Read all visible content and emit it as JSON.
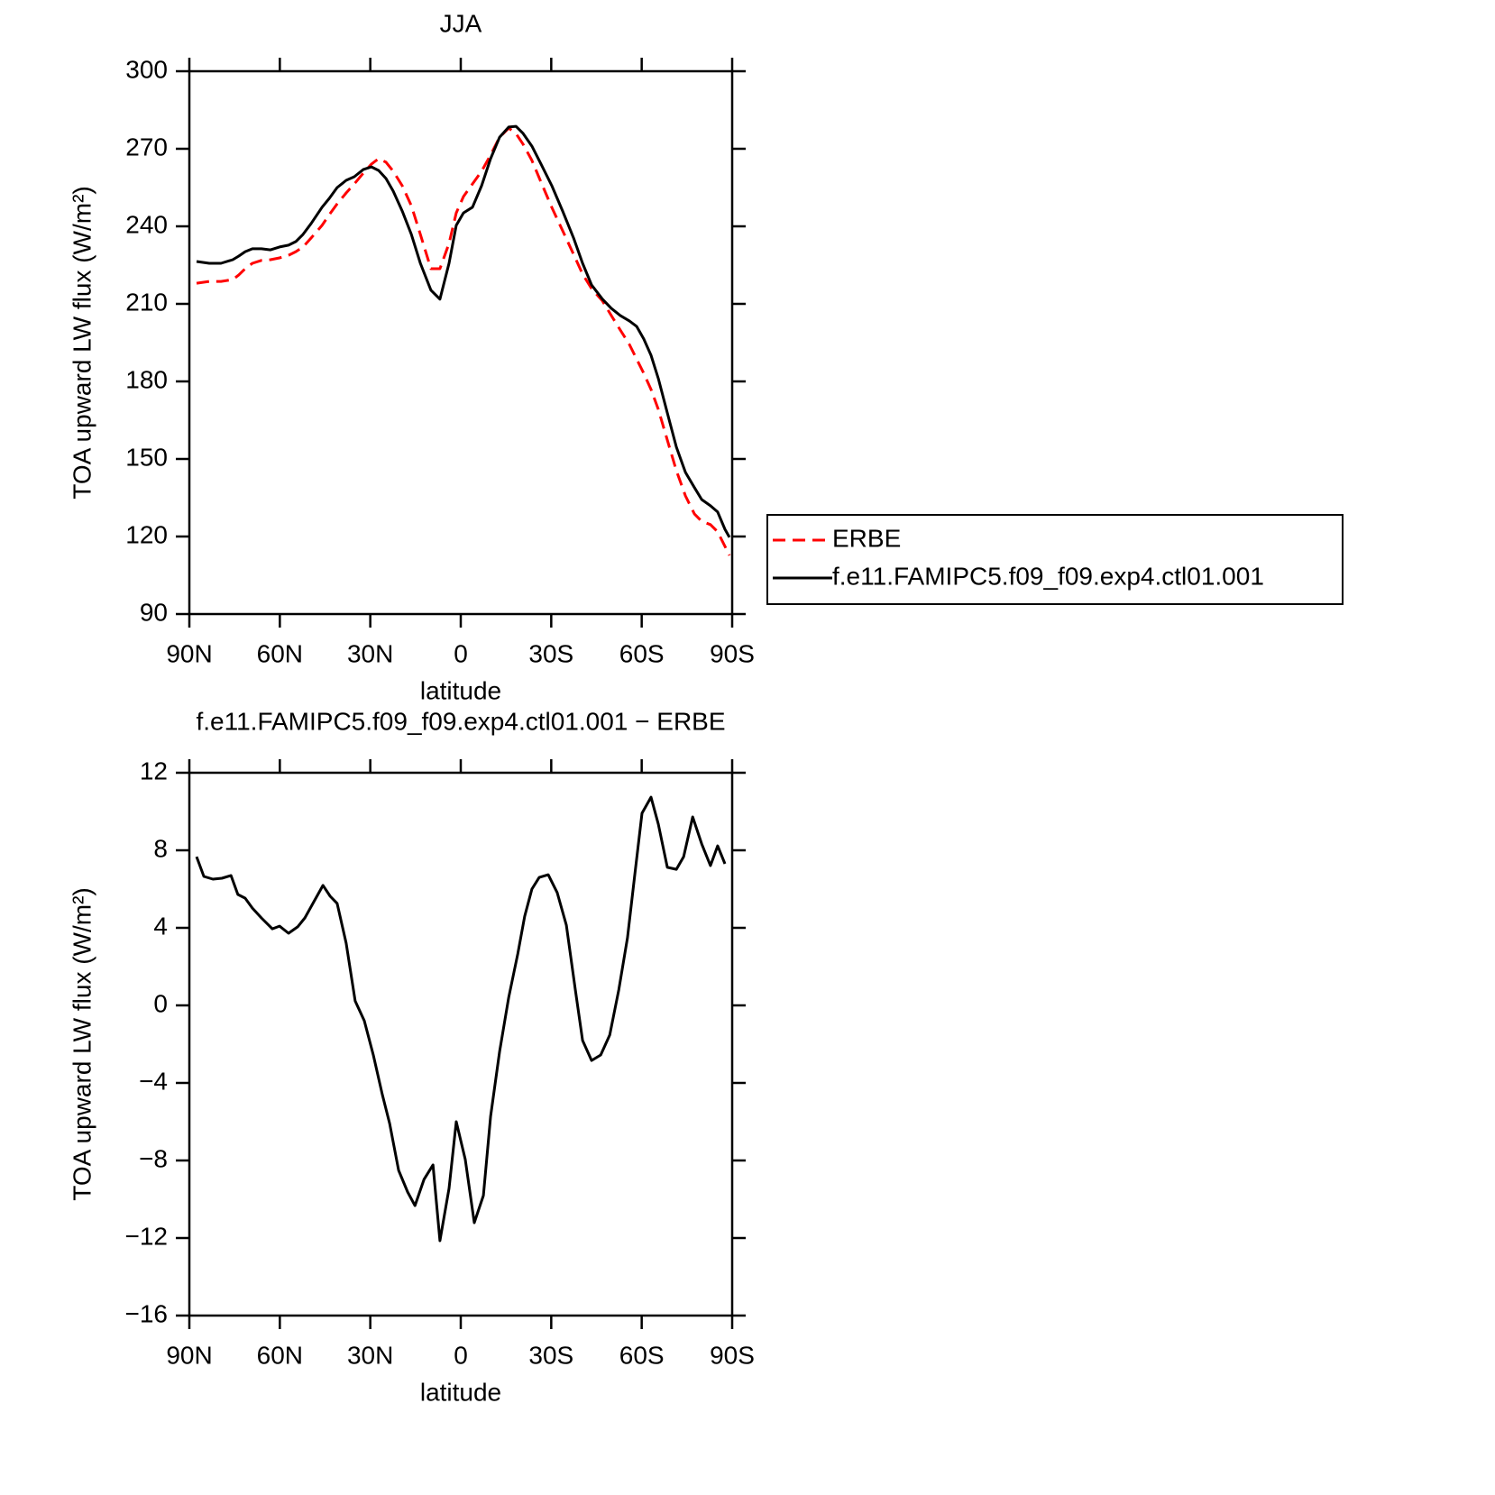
{
  "chart_data": [
    {
      "type": "line",
      "title": "JJA",
      "x_label": "latitude",
      "y_label": "TOA upward LW flux (W/m²)",
      "xlim": [
        90,
        -90
      ],
      "xticks": [
        {
          "value": 90,
          "label": "90N"
        },
        {
          "value": 60,
          "label": "60N"
        },
        {
          "value": 30,
          "label": "30N"
        },
        0,
        {
          "value": -30,
          "label": "30S"
        },
        {
          "value": -60,
          "label": "60S"
        },
        {
          "value": -90,
          "label": "90S"
        }
      ],
      "ylim": [
        90,
        300
      ],
      "yticks": [
        90,
        120,
        150,
        180,
        210,
        240,
        270,
        300
      ],
      "legend": "right",
      "x": [
        87.6,
        83.4,
        79.5,
        75.6,
        73.6,
        71.5,
        69.1,
        66.1,
        63.1,
        60.1,
        57.1,
        54.7,
        52.3,
        49.6,
        46.0,
        43.6,
        41.0,
        38.0,
        35.3,
        32.3,
        29.6,
        27.2,
        24.8,
        22.4,
        19.4,
        16.4,
        13.4,
        9.9,
        6.9,
        3.9,
        1.5,
        -0.9,
        -3.9,
        -6.9,
        -9.9,
        -12.9,
        -15.9,
        -18.3,
        -20.7,
        -23.6,
        -26.6,
        -30.2,
        -33.8,
        -37.4,
        -40.4,
        -43.4,
        -47.0,
        -49.9,
        -52.9,
        -55.9,
        -58.3,
        -60.7,
        -63.1,
        -65.5,
        -68.5,
        -71.5,
        -74.5,
        -77.5,
        -79.9,
        -82.8,
        -85.2,
        -87.6,
        -89.1
      ],
      "series": [
        {
          "name": "ERBE",
          "color": "#ff0000",
          "linestyle": "dashed",
          "values": [
            218.0,
            218.7,
            218.7,
            219.4,
            221.2,
            223.6,
            225.7,
            226.8,
            227.1,
            227.8,
            228.8,
            230.2,
            232.0,
            235.5,
            240.4,
            244.5,
            248.7,
            252.9,
            256.4,
            260.6,
            264.1,
            266.2,
            264.8,
            261.3,
            255.7,
            248.0,
            236.9,
            223.6,
            223.6,
            233.4,
            245.2,
            251.5,
            256.4,
            261.3,
            267.6,
            274.5,
            278.0,
            275.9,
            271.7,
            265.5,
            257.1,
            247.3,
            238.3,
            229.2,
            221.5,
            215.9,
            211.1,
            205.5,
            199.9,
            194.3,
            188.7,
            183.1,
            176.9,
            169.2,
            157.3,
            145.5,
            135.7,
            128.7,
            125.9,
            124.6,
            121.8,
            116.2,
            112.7
          ]
        },
        {
          "name": "f.e11.FAMIPC5.f09_f09.exp4.ctl01.001",
          "color": "#000000",
          "linestyle": "solid",
          "values": [
            226.4,
            225.7,
            225.7,
            227.1,
            228.5,
            230.2,
            231.3,
            231.3,
            230.9,
            232.0,
            232.7,
            234.1,
            236.9,
            241.1,
            247.4,
            250.8,
            255.0,
            257.8,
            259.2,
            262.0,
            263.0,
            261.6,
            258.5,
            253.6,
            245.9,
            236.9,
            225.7,
            215.3,
            211.8,
            225.7,
            240.4,
            245.2,
            247.4,
            255.7,
            266.2,
            274.5,
            278.4,
            278.7,
            275.9,
            271.0,
            264.1,
            255.7,
            245.9,
            235.5,
            225.7,
            217.3,
            211.8,
            208.3,
            205.5,
            203.4,
            201.3,
            196.4,
            190.1,
            181.1,
            167.8,
            154.6,
            144.8,
            138.9,
            134.3,
            131.9,
            129.5,
            122.8,
            119.7
          ]
        }
      ]
    },
    {
      "type": "line",
      "title": "f.e11.FAMIPC5.f09_f09.exp4.ctl01.001 − ERBE",
      "x_label": "latitude",
      "y_label": "TOA upward LW flux (W/m²)",
      "xlim": [
        90,
        -90
      ],
      "xticks": [
        {
          "value": 90,
          "label": "90N"
        },
        {
          "value": 60,
          "label": "60N"
        },
        {
          "value": 30,
          "label": "30N"
        },
        0,
        {
          "value": -30,
          "label": "30S"
        },
        {
          "value": -60,
          "label": "60S"
        },
        {
          "value": -90,
          "label": "90S"
        }
      ],
      "ylim": [
        -16,
        12
      ],
      "yticks": [
        {
          "value": -16,
          "label": "−16"
        },
        {
          "value": -12,
          "label": "−12"
        },
        {
          "value": -8,
          "label": "−8"
        },
        {
          "value": -4,
          "label": "−4"
        },
        0,
        4,
        8,
        12
      ],
      "color": "#000000",
      "x": [
        87.6,
        85.2,
        82.2,
        79.2,
        76.2,
        73.9,
        71.5,
        69.1,
        66.1,
        62.5,
        60.1,
        57.1,
        54.1,
        51.7,
        48.7,
        45.7,
        43.3,
        41.0,
        38.0,
        35.0,
        32.0,
        29.0,
        26.0,
        23.6,
        20.6,
        17.6,
        15.2,
        12.2,
        9.2,
        6.9,
        3.9,
        1.5,
        -1.5,
        -4.5,
        -7.5,
        -9.9,
        -12.9,
        -15.9,
        -18.9,
        -21.2,
        -23.6,
        -26.0,
        -29.0,
        -32.0,
        -35.0,
        -38.0,
        -40.4,
        -43.4,
        -46.4,
        -49.4,
        -52.4,
        -55.3,
        -57.7,
        -60.1,
        -63.1,
        -65.5,
        -68.5,
        -71.5,
        -73.9,
        -76.9,
        -79.9,
        -82.8,
        -85.2,
        -87.6
      ],
      "values": [
        7.67,
        6.65,
        6.51,
        6.56,
        6.7,
        5.72,
        5.53,
        5.02,
        4.51,
        3.95,
        4.09,
        3.72,
        4.05,
        4.51,
        5.35,
        6.19,
        5.63,
        5.26,
        3.21,
        0.23,
        -0.79,
        -2.56,
        -4.6,
        -6.09,
        -8.51,
        -9.63,
        -10.33,
        -8.98,
        -8.23,
        -12.14,
        -9.44,
        -6.0,
        -7.95,
        -11.21,
        -9.81,
        -5.72,
        -2.37,
        0.42,
        2.65,
        4.6,
        6.0,
        6.6,
        6.74,
        5.81,
        4.14,
        0.79,
        -1.81,
        -2.84,
        -2.56,
        -1.53,
        0.79,
        3.49,
        6.74,
        9.91,
        10.74,
        9.35,
        7.12,
        7.02,
        7.67,
        9.72,
        8.33,
        7.21,
        8.23,
        7.3
      ]
    }
  ]
}
